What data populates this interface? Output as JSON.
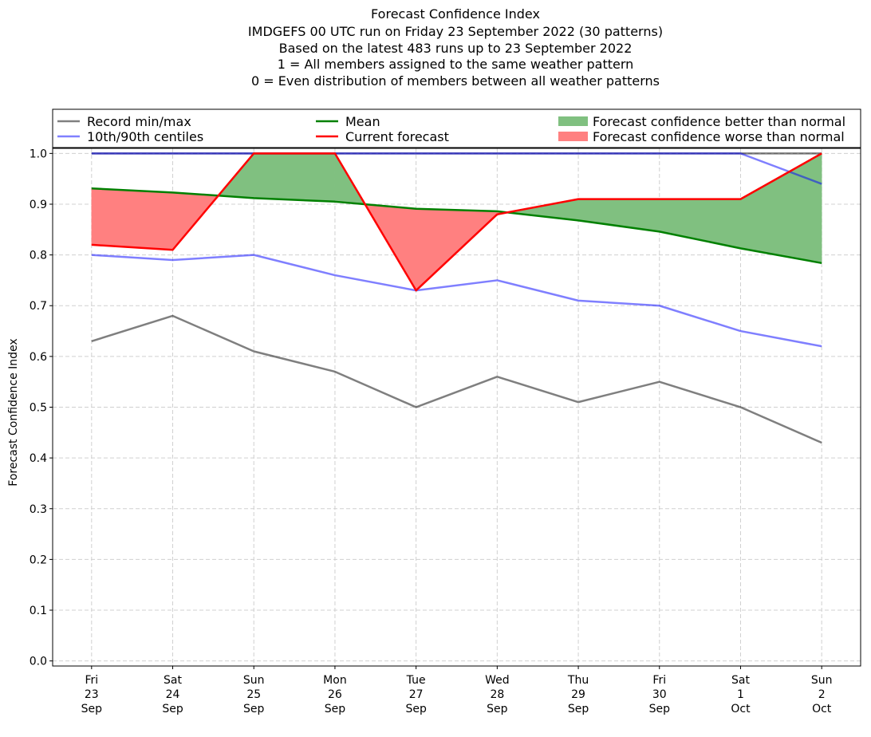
{
  "chart_data": {
    "type": "line",
    "title_lines": [
      "Forecast Confidence Index",
      "IMDGEFS 00 UTC run on Friday 23 September 2022 (30 patterns)",
      "Based on the latest 483 runs up to 23 September 2022",
      "1 = All members assigned to the same weather pattern",
      "0 = Even distribution of members between all weather patterns"
    ],
    "ylabel": "Forecast Confidence Index",
    "xlabel": "",
    "ylim": [
      -0.01,
      1.01
    ],
    "yticks": [
      "0.0",
      "0.1",
      "0.2",
      "0.3",
      "0.4",
      "0.5",
      "0.6",
      "0.7",
      "0.8",
      "0.9",
      "1.0"
    ],
    "categories": [
      [
        "Fri",
        "23",
        "Sep"
      ],
      [
        "Sat",
        "24",
        "Sep"
      ],
      [
        "Sun",
        "25",
        "Sep"
      ],
      [
        "Mon",
        "26",
        "Sep"
      ],
      [
        "Tue",
        "27",
        "Sep"
      ],
      [
        "Wed",
        "28",
        "Sep"
      ],
      [
        "Thu",
        "29",
        "Sep"
      ],
      [
        "Fri",
        "30",
        "Sep"
      ],
      [
        "Sat",
        "1",
        "Oct"
      ],
      [
        "Sun",
        "2",
        "Oct"
      ]
    ],
    "grid": true,
    "legend_placement": "top (above plot)",
    "series": [
      {
        "name": "Record min",
        "legend": "Record min/max",
        "color": "#808080",
        "values": [
          0.63,
          0.68,
          0.61,
          0.57,
          0.5,
          0.56,
          0.51,
          0.55,
          0.5,
          0.43
        ]
      },
      {
        "name": "Record max",
        "color": "#808080",
        "values": [
          1.0,
          1.0,
          1.0,
          1.0,
          1.0,
          1.0,
          1.0,
          1.0,
          1.0,
          1.0
        ]
      },
      {
        "name": "10th centile",
        "legend": "10th/90th centiles",
        "color": "#8080ff",
        "values": [
          0.8,
          0.79,
          0.8,
          0.76,
          0.73,
          0.75,
          0.71,
          0.7,
          0.65,
          0.62
        ]
      },
      {
        "name": "90th centile",
        "color": "#8080ff",
        "values": [
          1.0,
          1.0,
          1.0,
          1.0,
          1.0,
          1.0,
          1.0,
          1.0,
          1.0,
          0.94
        ]
      },
      {
        "name": "Mean",
        "legend": "Mean",
        "color": "#008000",
        "values": [
          0.931,
          0.923,
          0.912,
          0.905,
          0.891,
          0.886,
          0.868,
          0.846,
          0.813,
          0.784
        ]
      },
      {
        "name": "Current forecast",
        "legend": "Current forecast",
        "color": "#ff0000",
        "values": [
          0.82,
          0.81,
          1.0,
          1.0,
          0.73,
          0.88,
          0.91,
          0.91,
          0.91,
          1.0
        ]
      }
    ],
    "fills": [
      {
        "legend": "Forecast confidence better than normal",
        "color": "#80c080"
      },
      {
        "legend": "Forecast confidence worse than normal",
        "color": "#ff8080"
      }
    ]
  }
}
